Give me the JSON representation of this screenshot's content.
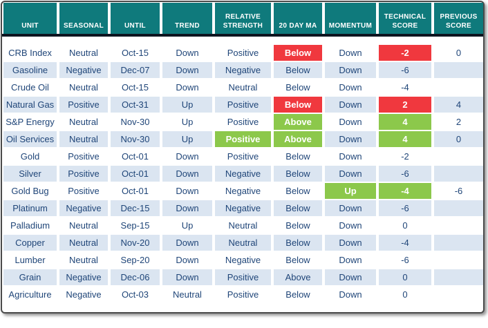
{
  "chart_data": {
    "type": "table",
    "title": "Commodity technical score table",
    "column_keys": [
      "unit",
      "seasonal",
      "until",
      "trend",
      "rs",
      "ma",
      "momentum",
      "tech",
      "prev"
    ],
    "columns": [
      "UNIT",
      "SEASONAL",
      "UNTIL",
      "TREND",
      "RELATIVE STRENGTH",
      "20 DAY MA",
      "MOMENTUM",
      "TECHNICAL SCORE",
      "PREVIOUS SCORE"
    ],
    "rows": [
      {
        "unit": "CRB Index",
        "seasonal": "Neutral",
        "until": "Oct-15",
        "trend": "Down",
        "rs": "Positive",
        "ma": "Below",
        "momentum": "Down",
        "tech": "-2",
        "prev": "0",
        "highlights": {
          "ma": "red",
          "tech": "red"
        }
      },
      {
        "unit": "Gasoline",
        "seasonal": "Negative",
        "until": "Dec-07",
        "trend": "Down",
        "rs": "Negative",
        "ma": "Below",
        "momentum": "Down",
        "tech": "-6",
        "prev": ""
      },
      {
        "unit": "Crude Oil",
        "seasonal": "Neutral",
        "until": "Oct-15",
        "trend": "Down",
        "rs": "Neutral",
        "ma": "Below",
        "momentum": "Down",
        "tech": "-4",
        "prev": ""
      },
      {
        "unit": "Natural Gas",
        "seasonal": "Positive",
        "until": "Oct-31",
        "trend": "Up",
        "rs": "Positive",
        "ma": "Below",
        "momentum": "Down",
        "tech": "2",
        "prev": "4",
        "highlights": {
          "ma": "red",
          "tech": "red"
        }
      },
      {
        "unit": "S&P Energy",
        "seasonal": "Neutral",
        "until": "Nov-30",
        "trend": "Up",
        "rs": "Positive",
        "ma": "Above",
        "momentum": "Down",
        "tech": "4",
        "prev": "2",
        "highlights": {
          "ma": "green",
          "tech": "green"
        }
      },
      {
        "unit": "Oil Services",
        "seasonal": "Neutral",
        "until": "Nov-30",
        "trend": "Up",
        "rs": "Positive",
        "ma": "Above",
        "momentum": "Down",
        "tech": "4",
        "prev": "0",
        "highlights": {
          "rs": "green",
          "ma": "green",
          "tech": "green"
        }
      },
      {
        "unit": "Gold",
        "seasonal": "Positive",
        "until": "Oct-01",
        "trend": "Down",
        "rs": "Positive",
        "ma": "Below",
        "momentum": "Down",
        "tech": "-2",
        "prev": ""
      },
      {
        "unit": "Silver",
        "seasonal": "Positive",
        "until": "Oct-01",
        "trend": "Down",
        "rs": "Negative",
        "ma": "Below",
        "momentum": "Down",
        "tech": "-6",
        "prev": ""
      },
      {
        "unit": "Gold Bug",
        "seasonal": "Positive",
        "until": "Oct-01",
        "trend": "Down",
        "rs": "Negative",
        "ma": "Below",
        "momentum": "Up",
        "tech": "-4",
        "prev": "-6",
        "highlights": {
          "momentum": "green",
          "tech": "green"
        }
      },
      {
        "unit": "Platinum",
        "seasonal": "Negative",
        "until": "Dec-15",
        "trend": "Down",
        "rs": "Negative",
        "ma": "Below",
        "momentum": "Down",
        "tech": "-6",
        "prev": ""
      },
      {
        "unit": "Palladium",
        "seasonal": "Neutral",
        "until": "Sep-15",
        "trend": "Up",
        "rs": "Neutral",
        "ma": "Below",
        "momentum": "Down",
        "tech": "0",
        "prev": ""
      },
      {
        "unit": "Copper",
        "seasonal": "Neutral",
        "until": "Nov-20",
        "trend": "Down",
        "rs": "Neutral",
        "ma": "Below",
        "momentum": "Down",
        "tech": "-4",
        "prev": ""
      },
      {
        "unit": "Lumber",
        "seasonal": "Neutral",
        "until": "Sep-20",
        "trend": "Down",
        "rs": "Negative",
        "ma": "Below",
        "momentum": "Down",
        "tech": "-6",
        "prev": ""
      },
      {
        "unit": "Grain",
        "seasonal": "Negative",
        "until": "Dec-06",
        "trend": "Down",
        "rs": "Positive",
        "ma": "Above",
        "momentum": "Down",
        "tech": "0",
        "prev": ""
      },
      {
        "unit": "Agriculture",
        "seasonal": "Negative",
        "until": "Oct-03",
        "trend": "Neutral",
        "rs": "Positive",
        "ma": "Below",
        "momentum": "Down",
        "tech": "0",
        "prev": ""
      }
    ],
    "layout": {
      "banded_rows": "even rows light blue",
      "highlight_meaning": {
        "red": "bearish flag",
        "green": "bullish flag"
      }
    },
    "colors": {
      "header_bg": "#0F7A7C",
      "band": "#DBE5F1",
      "text": "#1F4578",
      "red": "#F0383E",
      "green": "#8CC84B",
      "divider": "#0d1520"
    }
  }
}
